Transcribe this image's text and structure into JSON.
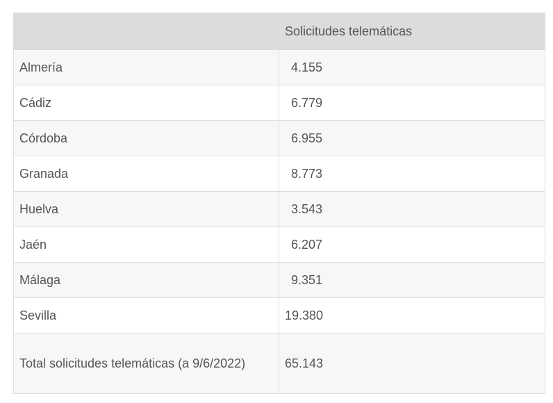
{
  "table": {
    "headers": [
      "",
      "Solicitudes telemáticas"
    ],
    "rows": [
      {
        "province": "Almería",
        "value": "4.155"
      },
      {
        "province": "Cádiz",
        "value": "6.779"
      },
      {
        "province": "Córdoba",
        "value": "6.955"
      },
      {
        "province": "Granada",
        "value": "8.773"
      },
      {
        "province": "Huelva",
        "value": "3.543"
      },
      {
        "province": "Jaén",
        "value": "6.207"
      },
      {
        "province": "Málaga",
        "value": "9.351"
      },
      {
        "province": "Sevilla",
        "value": "19.380"
      },
      {
        "province": "Total solicitudes telemáticas (a 9/6/2022)",
        "value": "65.143"
      }
    ]
  }
}
